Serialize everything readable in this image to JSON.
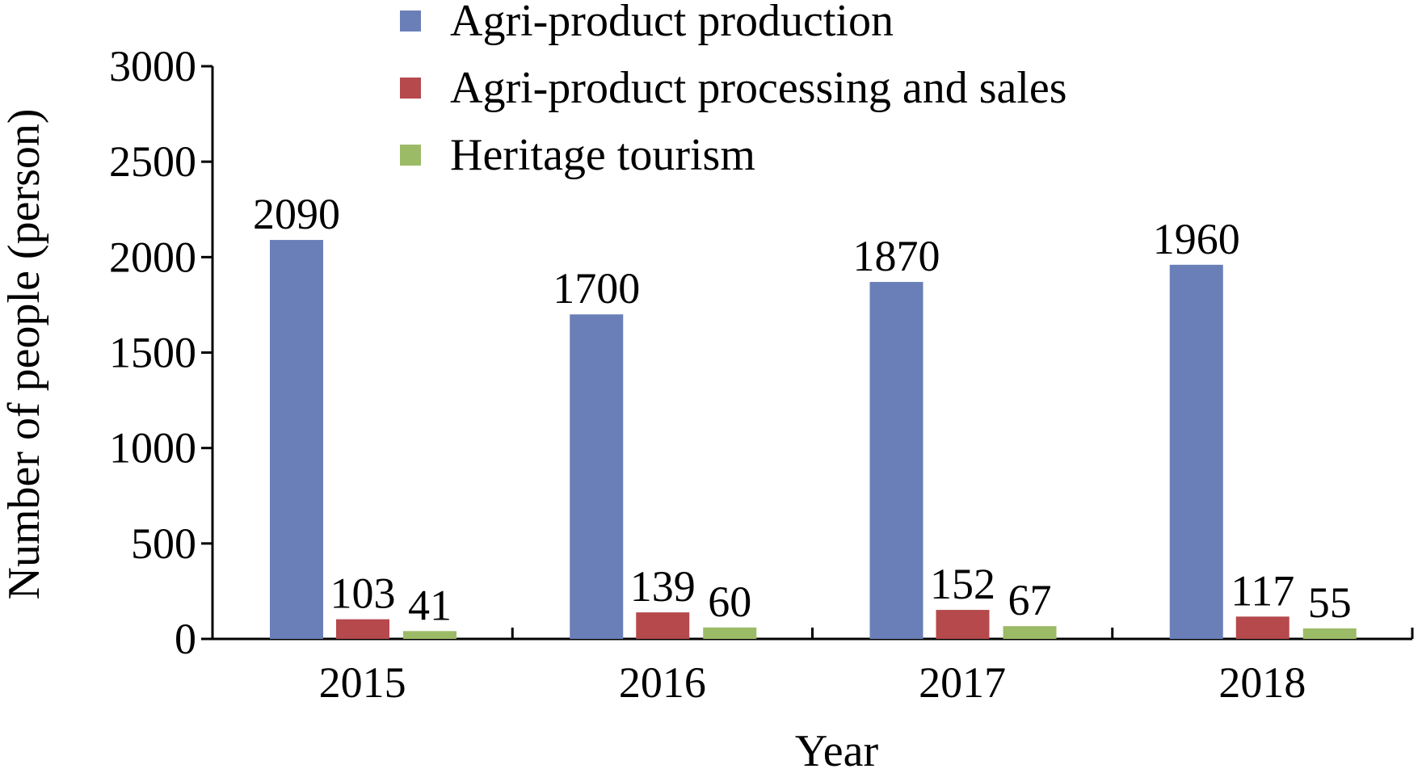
{
  "chart_data": {
    "type": "bar",
    "title": "",
    "xlabel": "Year",
    "ylabel": "Number of people (person)",
    "categories": [
      "2015",
      "2016",
      "2017",
      "2018"
    ],
    "series": [
      {
        "name": "Agri-product production",
        "values": [
          2090,
          1700,
          1870,
          1960
        ],
        "color": "#6A7FB8"
      },
      {
        "name": "Agri-product processing and sales",
        "values": [
          103,
          139,
          152,
          117
        ],
        "color": "#B5494C"
      },
      {
        "name": "Heritage tourism",
        "values": [
          41,
          60,
          67,
          55
        ],
        "color": "#9CBB67"
      }
    ],
    "ylim": [
      0,
      3000
    ],
    "yticks": [
      0,
      500,
      1000,
      1500,
      2000,
      2500,
      3000
    ],
    "legend_position": "top",
    "grid": false,
    "data_labels": true
  }
}
